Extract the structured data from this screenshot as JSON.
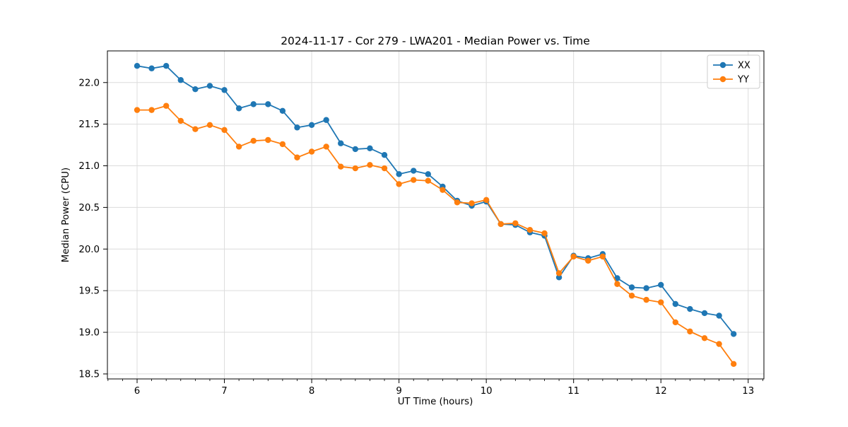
{
  "chart_data": {
    "type": "line",
    "title": "2024-11-17 - Cor 279 - LWA201 - Median Power vs. Time",
    "xlabel": "UT Time (hours)",
    "ylabel": "Median Power (CPU)",
    "xlim": [
      5.66,
      13.18
    ],
    "ylim": [
      18.44,
      22.38
    ],
    "x_major_ticks": [
      6,
      7,
      8,
      9,
      10,
      11,
      12,
      13
    ],
    "x_minor_divisions": 6,
    "y_major_ticks": [
      18.5,
      19.0,
      19.5,
      20.0,
      20.5,
      21.0,
      21.5,
      22.0
    ],
    "grid": true,
    "legend_position": "upper right",
    "x": [
      6.0,
      6.1667,
      6.3333,
      6.5,
      6.6667,
      6.8333,
      7.0,
      7.1667,
      7.3333,
      7.5,
      7.6667,
      7.8333,
      8.0,
      8.1667,
      8.3333,
      8.5,
      8.6667,
      8.8333,
      9.0,
      9.1667,
      9.3333,
      9.5,
      9.6667,
      9.8333,
      10.0,
      10.1667,
      10.3333,
      10.5,
      10.6667,
      10.8333,
      11.0,
      11.1667,
      11.3333,
      11.5,
      11.6667,
      11.8333,
      12.0,
      12.1667,
      12.3333,
      12.5,
      12.6667,
      12.8333
    ],
    "series": [
      {
        "name": "XX",
        "color": "#1f77b4",
        "values": [
          22.2,
          22.17,
          22.2,
          22.03,
          21.92,
          21.96,
          21.91,
          21.69,
          21.74,
          21.74,
          21.66,
          21.46,
          21.49,
          21.55,
          21.27,
          21.2,
          21.21,
          21.13,
          20.9,
          20.94,
          20.9,
          20.75,
          20.58,
          20.52,
          20.57,
          20.3,
          20.29,
          20.2,
          20.16,
          19.66,
          19.92,
          19.89,
          19.94,
          19.65,
          19.54,
          19.53,
          19.57,
          19.34,
          19.28,
          19.23,
          19.2,
          18.98
        ]
      },
      {
        "name": "YY",
        "color": "#ff7f0e",
        "values": [
          21.67,
          21.67,
          21.72,
          21.54,
          21.44,
          21.49,
          21.43,
          21.23,
          21.3,
          21.31,
          21.26,
          21.1,
          21.17,
          21.23,
          20.99,
          20.97,
          21.01,
          20.97,
          20.78,
          20.83,
          20.82,
          20.71,
          20.56,
          20.55,
          20.59,
          20.3,
          20.31,
          20.23,
          20.19,
          19.71,
          19.91,
          19.86,
          19.91,
          19.58,
          19.44,
          19.39,
          19.36,
          19.12,
          19.01,
          18.93,
          18.86,
          18.62
        ]
      }
    ],
    "colors": {
      "grid": "#dcdcdc",
      "spine": "#000000",
      "tick": "#000000",
      "legend_border": "#cccccc",
      "legend_background": "#ffffff"
    }
  }
}
